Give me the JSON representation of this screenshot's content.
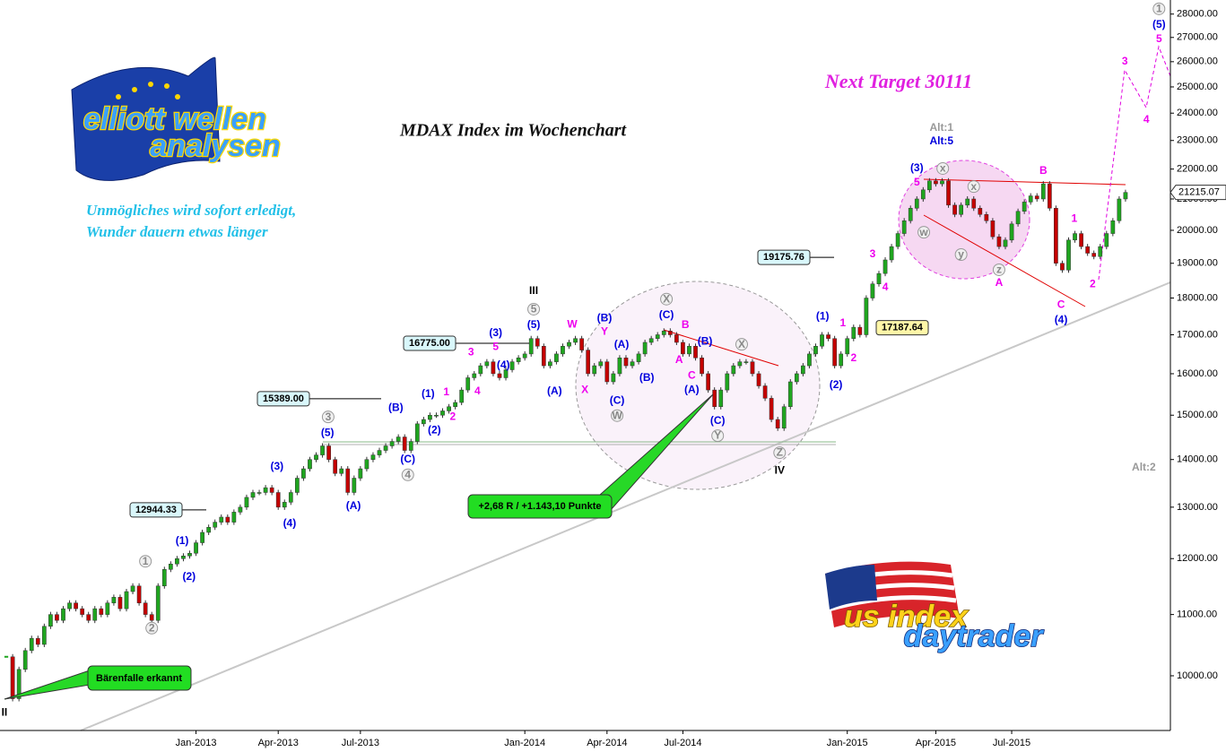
{
  "chart_data": {
    "type": "candlestick",
    "title": "MDAX Index im Wochenchart",
    "subtitle": "Next Target 30111",
    "slogan": [
      "Unmögliches wird sofort erledigt,",
      "Wunder dauern etwas länger"
    ],
    "callouts": [
      "+2,68 R / +1.143,10 Punkte",
      "Bärenfalle erkannt"
    ],
    "logos": {
      "top": [
        "elliott wellen",
        "analysen"
      ],
      "bottom": [
        "us index",
        "daytrader"
      ]
    },
    "y_scale": "log",
    "up_color": "#1fa51f",
    "down_color": "#c40000",
    "close": [
      10300,
      9650,
      10100,
      10400,
      10600,
      10500,
      10800,
      11000,
      10900,
      11100,
      11200,
      11100,
      11000,
      10900,
      11100,
      11000,
      11200,
      11300,
      11100,
      11400,
      11500,
      11200,
      11000,
      10900,
      11500,
      11800,
      11900,
      12000,
      12050,
      12100,
      12300,
      12500,
      12600,
      12700,
      12800,
      12700,
      12900,
      13000,
      13200,
      13300,
      13300,
      13400,
      13300,
      13000,
      13100,
      13300,
      13600,
      13800,
      14000,
      14100,
      14300,
      14000,
      13700,
      13800,
      13300,
      13600,
      13800,
      14000,
      14100,
      14200,
      14300,
      14400,
      14500,
      14200,
      14400,
      14800,
      14900,
      15000,
      15000,
      15100,
      15200,
      15300,
      15600,
      15900,
      16000,
      16200,
      16300,
      16000,
      15900,
      16100,
      16300,
      16400,
      16500,
      16900,
      16700,
      16200,
      16300,
      16500,
      16700,
      16800,
      16900,
      16600,
      16000,
      16200,
      16300,
      15800,
      16000,
      16400,
      16200,
      16300,
      16500,
      16800,
      16900,
      17000,
      17100,
      17000,
      16800,
      16500,
      16700,
      16400,
      16000,
      15600,
      15200,
      15600,
      16000,
      16200,
      16300,
      16300,
      16000,
      15700,
      15400,
      14900,
      14700,
      15200,
      15800,
      16000,
      16200,
      16500,
      16700,
      17000,
      16900,
      16200,
      16500,
      16900,
      17200,
      17000,
      18000,
      18400,
      18700,
      19100,
      19500,
      19900,
      20300,
      20700,
      21000,
      21300,
      21600,
      21500,
      21600,
      20800,
      20500,
      20800,
      21000,
      20700,
      20500,
      20300,
      19800,
      19500,
      19700,
      20200,
      20600,
      20900,
      21100,
      21000,
      21500,
      20700,
      19000,
      18800,
      19700,
      19900,
      19500,
      19300,
      19200,
      19500,
      19900,
      20300,
      21000,
      21215.07
    ],
    "last_price": 21215.07,
    "xlim": [
      -1,
      184.1
    ],
    "xticks": [
      {
        "value": 30,
        "label": "Jan-2013"
      },
      {
        "value": 43,
        "label": "Apr-2013"
      },
      {
        "value": 56,
        "label": "Jul-2013"
      },
      {
        "value": 82,
        "label": "Jan-2014"
      },
      {
        "value": 95,
        "label": "Apr-2014"
      },
      {
        "value": 107,
        "label": "Jul-2014"
      },
      {
        "value": 133,
        "label": "Jan-2015"
      },
      {
        "value": 147,
        "label": "Apr-2015"
      },
      {
        "value": 159,
        "label": "Jul-2015"
      }
    ],
    "ylim": [
      9184,
      28620
    ],
    "yticks": [
      {
        "value": 10000,
        "label": "10000.00"
      },
      {
        "value": 11000,
        "label": "11000.00"
      },
      {
        "value": 12000,
        "label": "12000.00"
      },
      {
        "value": 13000,
        "label": "13000.00"
      },
      {
        "value": 14000,
        "label": "14000.00"
      },
      {
        "value": 15000,
        "label": "15000.00"
      },
      {
        "value": 16000,
        "label": "16000.00"
      },
      {
        "value": 17000,
        "label": "17000.00"
      },
      {
        "value": 18000,
        "label": "18000.00"
      },
      {
        "value": 19000,
        "label": "19000.00"
      },
      {
        "value": 20000,
        "label": "20000.00"
      },
      {
        "value": 21000,
        "label": "21000.00"
      },
      {
        "value": 22000,
        "label": "22000.00"
      },
      {
        "value": 23000,
        "label": "23000.00"
      },
      {
        "value": 24000,
        "label": "24000.00"
      },
      {
        "value": 25000,
        "label": "25000.00"
      },
      {
        "value": 26000,
        "label": "26000.00"
      },
      {
        "value": 27000,
        "label": "27000.00"
      },
      {
        "value": 28000,
        "label": "28000.00"
      }
    ],
    "price_levels": [
      {
        "value": 12944.33,
        "label": "12944.33"
      },
      {
        "value": 15389,
        "label": "15389.00"
      },
      {
        "value": 16775,
        "label": "16775.00"
      },
      {
        "value": 19175.76,
        "label": "19175.76"
      },
      {
        "value": 17187.64,
        "label": "17187.64"
      }
    ],
    "annotations": [
      {
        "color": "#000000",
        "circled": false,
        "labels": [
          {
            "text": "II",
            "x": -0.3,
            "y": 9440
          },
          {
            "text": "III",
            "x": 83.4,
            "y": 18190
          },
          {
            "text": "IV",
            "x": 122.3,
            "y": 13760
          }
        ]
      },
      {
        "color": "#0000dd",
        "circled": false,
        "labels": [
          {
            "text": "(1)",
            "x": 27.8,
            "y": 12330
          },
          {
            "text": "(2)",
            "x": 28.9,
            "y": 11660
          },
          {
            "text": "(3)",
            "x": 42.8,
            "y": 13840
          },
          {
            "text": "(4)",
            "x": 44.8,
            "y": 12670
          },
          {
            "text": "(5)",
            "x": 50.8,
            "y": 14590
          },
          {
            "text": "(A)",
            "x": 54.9,
            "y": 13020
          },
          {
            "text": "(B)",
            "x": 61.6,
            "y": 15170
          },
          {
            "text": "(C)",
            "x": 63.5,
            "y": 14000
          },
          {
            "text": "(1)",
            "x": 66.7,
            "y": 15500
          },
          {
            "text": "(2)",
            "x": 67.7,
            "y": 14650
          },
          {
            "text": "(3)",
            "x": 77.4,
            "y": 17040
          },
          {
            "text": "(4)",
            "x": 78.6,
            "y": 16200
          },
          {
            "text": "(5)",
            "x": 83.4,
            "y": 17250
          },
          {
            "text": "(A)",
            "x": 86.7,
            "y": 15560
          },
          {
            "text": "(B)",
            "x": 94.6,
            "y": 17440
          },
          {
            "text": "(A)",
            "x": 97.3,
            "y": 16730
          },
          {
            "text": "(C)",
            "x": 96.6,
            "y": 15340
          },
          {
            "text": "(B)",
            "x": 101.3,
            "y": 15890
          },
          {
            "text": "(C)",
            "x": 104.4,
            "y": 17520
          },
          {
            "text": "(B)",
            "x": 110.5,
            "y": 16820
          },
          {
            "text": "(A)",
            "x": 108.4,
            "y": 15600
          },
          {
            "text": "(C)",
            "x": 112.5,
            "y": 14860
          },
          {
            "text": "(1)",
            "x": 129.1,
            "y": 17490
          },
          {
            "text": "(2)",
            "x": 131.2,
            "y": 15710
          },
          {
            "text": "(3)",
            "x": 144,
            "y": 22020
          },
          {
            "text": "(4)",
            "x": 166.8,
            "y": 17390
          },
          {
            "text": "(5)",
            "x": 182.3,
            "y": 27530
          },
          {
            "text": "Alt:5",
            "x": 147.9,
            "y": 22960
          }
        ]
      },
      {
        "color": "#ee00ee",
        "circled": false,
        "labels": [
          {
            "text": "1",
            "x": 69.6,
            "y": 15540
          },
          {
            "text": "2",
            "x": 70.6,
            "y": 14960
          },
          {
            "text": "3",
            "x": 73.5,
            "y": 16540
          },
          {
            "text": "4",
            "x": 74.5,
            "y": 15560
          },
          {
            "text": "5",
            "x": 77.4,
            "y": 16680
          },
          {
            "text": "W",
            "x": 89.5,
            "y": 17270
          },
          {
            "text": "X",
            "x": 91.5,
            "y": 15600
          },
          {
            "text": "Y",
            "x": 94.6,
            "y": 17080
          },
          {
            "text": "B",
            "x": 107.4,
            "y": 17250
          },
          {
            "text": "A",
            "x": 106.4,
            "y": 16340
          },
          {
            "text": "C",
            "x": 108.4,
            "y": 15950
          },
          {
            "text": "1",
            "x": 132.3,
            "y": 17300
          },
          {
            "text": "2",
            "x": 134,
            "y": 16390
          },
          {
            "text": "3",
            "x": 137,
            "y": 19260
          },
          {
            "text": "4",
            "x": 139,
            "y": 18290
          },
          {
            "text": "5",
            "x": 144,
            "y": 21540
          },
          {
            "text": "A",
            "x": 157,
            "y": 18420
          },
          {
            "text": "B",
            "x": 164,
            "y": 21930
          },
          {
            "text": "1",
            "x": 168.9,
            "y": 20360
          },
          {
            "text": "C",
            "x": 166.8,
            "y": 17810
          },
          {
            "text": "2",
            "x": 171.8,
            "y": 18390
          },
          {
            "text": "3",
            "x": 176.9,
            "y": 26000
          },
          {
            "text": "4",
            "x": 180.3,
            "y": 23750
          },
          {
            "text": "5",
            "x": 182.3,
            "y": 26920
          }
        ]
      },
      {
        "color": "#999999",
        "circled": false,
        "labels": [
          {
            "text": "Alt:1",
            "x": 147.9,
            "y": 23450
          },
          {
            "text": "Alt:2",
            "x": 179.9,
            "y": 13820
          }
        ]
      },
      {
        "color": "#999999",
        "circled": true,
        "labels": [
          {
            "text": "1",
            "x": 22,
            "y": 11950
          },
          {
            "text": "2",
            "x": 23,
            "y": 10770
          },
          {
            "text": "3",
            "x": 50.9,
            "y": 14960
          },
          {
            "text": "4",
            "x": 63.5,
            "y": 13670
          },
          {
            "text": "5",
            "x": 83.4,
            "y": 17690
          },
          {
            "text": "W",
            "x": 96.6,
            "y": 14990
          },
          {
            "text": "X",
            "x": 104.4,
            "y": 17970
          },
          {
            "text": "X",
            "x": 116.3,
            "y": 16750
          },
          {
            "text": "Y",
            "x": 112.5,
            "y": 14530
          },
          {
            "text": "Z",
            "x": 122.3,
            "y": 14150
          },
          {
            "text": "x",
            "x": 148.1,
            "y": 22020
          },
          {
            "text": "w",
            "x": 145.1,
            "y": 19940
          },
          {
            "text": "x",
            "x": 153,
            "y": 21410
          },
          {
            "text": "y",
            "x": 151,
            "y": 19260
          },
          {
            "text": "z",
            "x": 157,
            "y": 18810
          },
          {
            "text": "1",
            "x": 182.3,
            "y": 28230
          }
        ]
      }
    ]
  }
}
